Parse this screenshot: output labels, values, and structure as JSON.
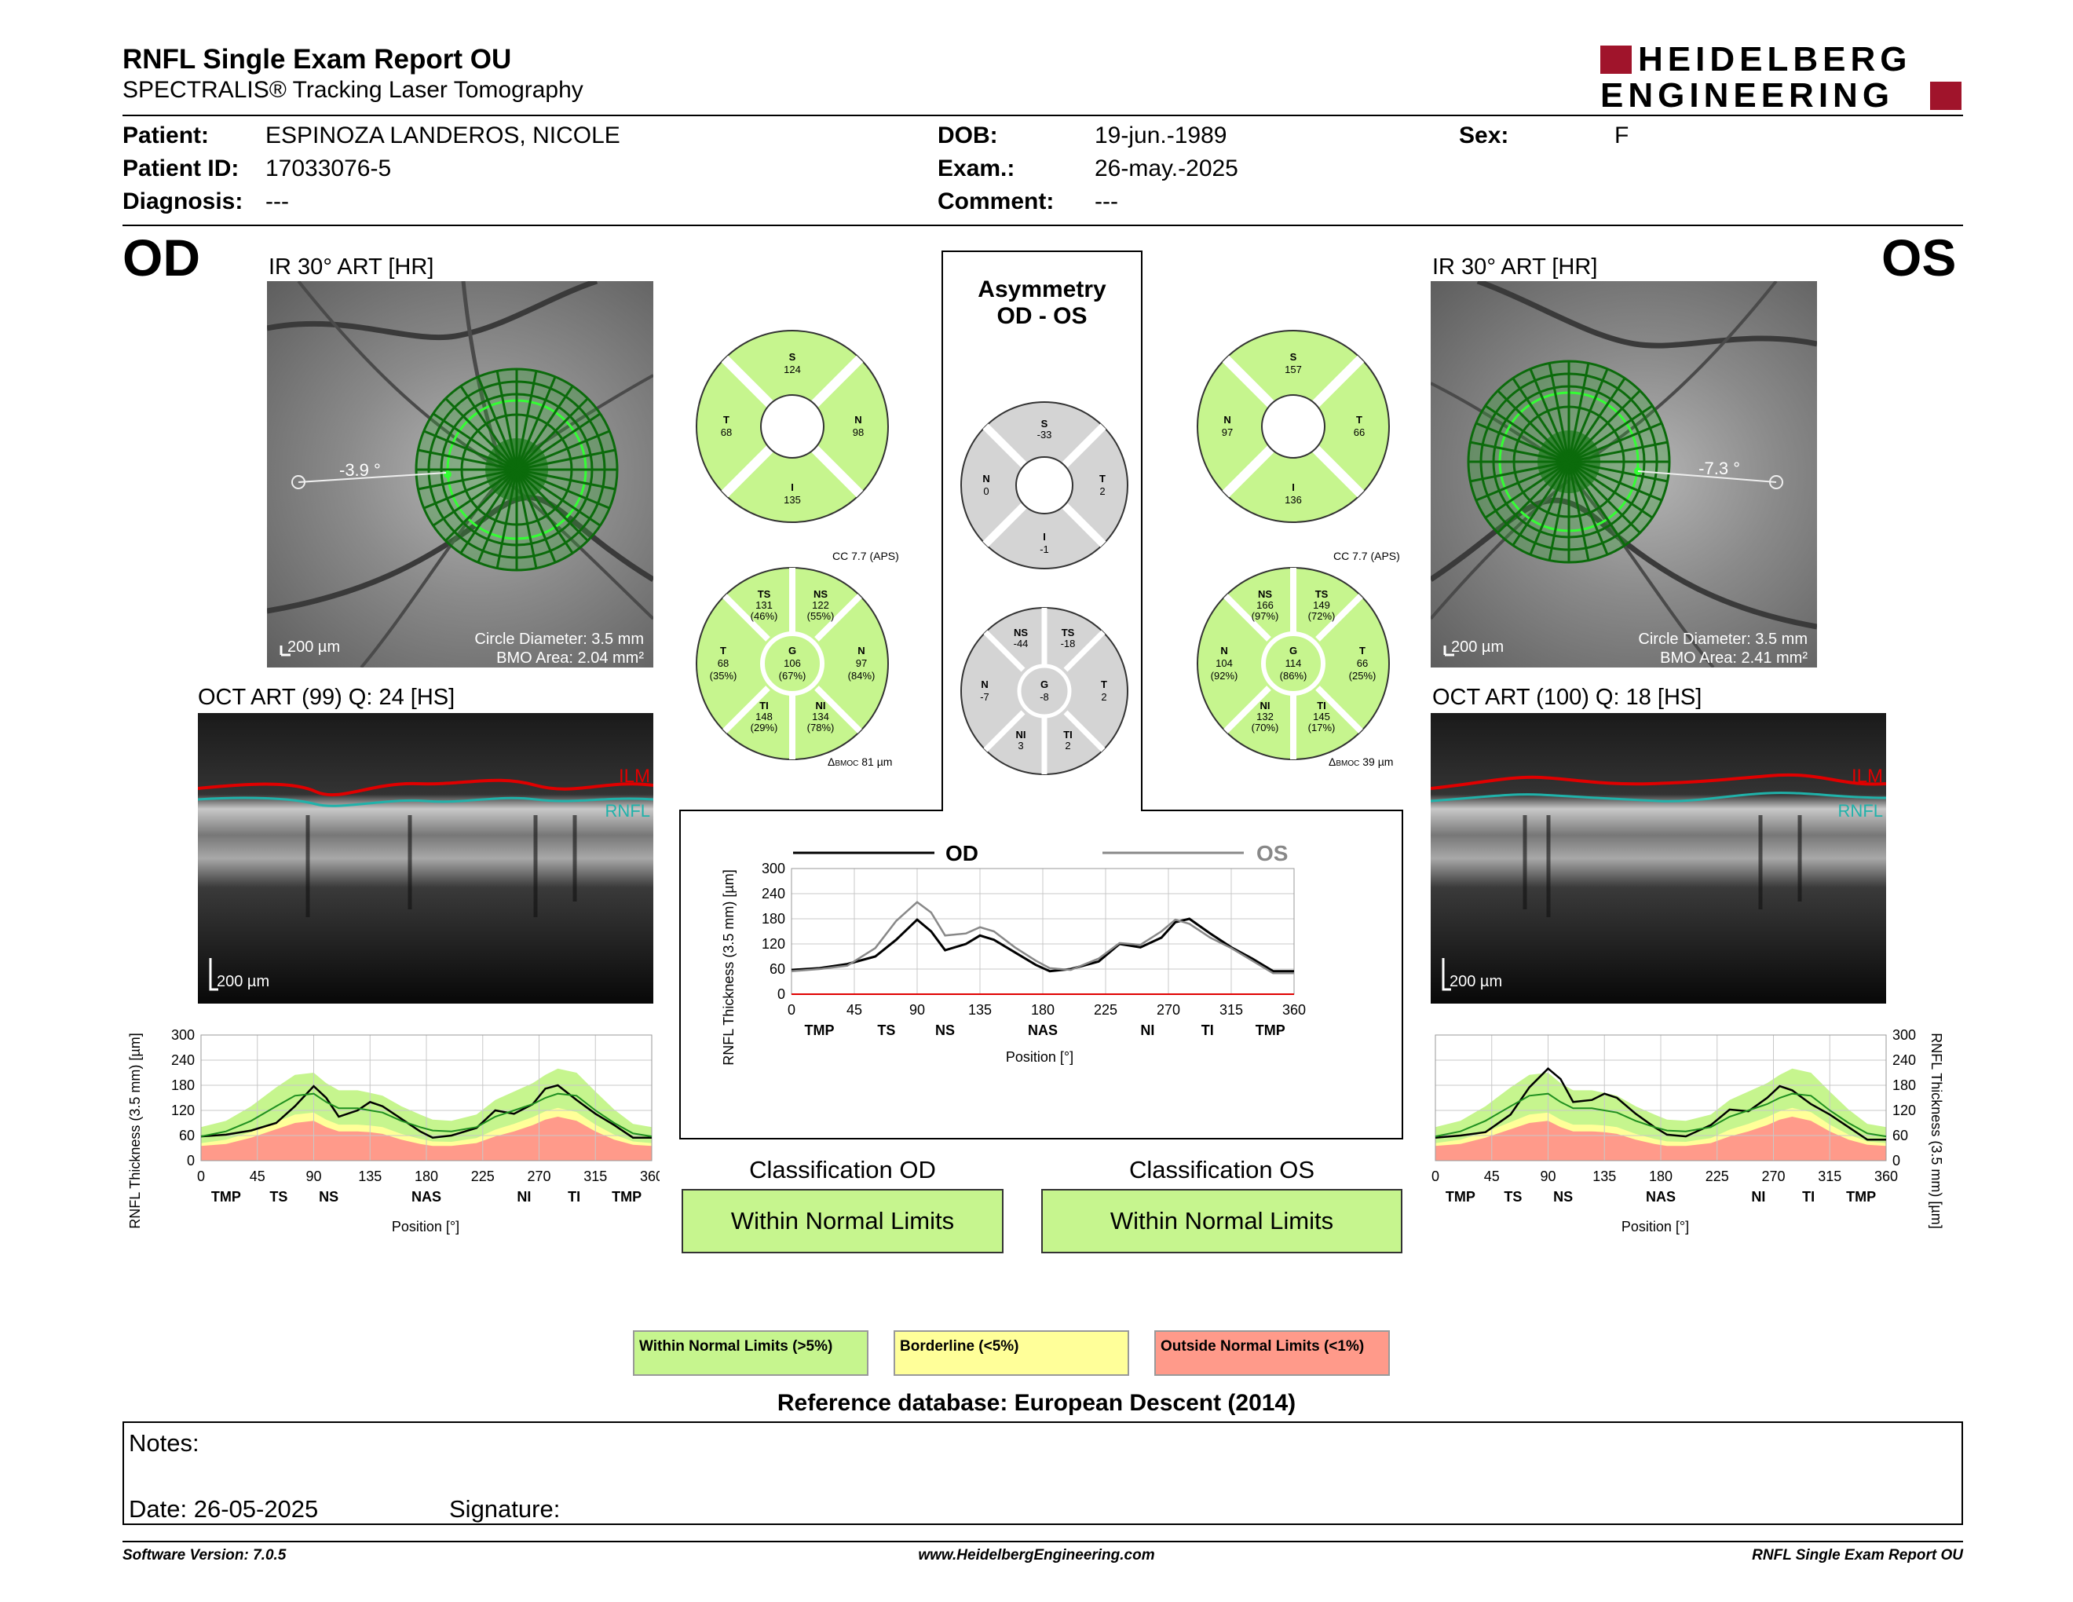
{
  "header": {
    "title": "RNFL Single Exam Report OU",
    "subtitle": "SPECTRALIS® Tracking Laser Tomography",
    "logo_line1": "HEIDELBERG",
    "logo_line2": "ENGINEERING"
  },
  "patient": {
    "patient_label": "Patient:",
    "patient_value": "ESPINOZA LANDEROS, NICOLE",
    "id_label": "Patient ID:",
    "id_value": "17033076-5",
    "diagnosis_label": "Diagnosis:",
    "diagnosis_value": "---",
    "dob_label": "DOB:",
    "dob_value": "19-jun.-1989",
    "exam_label": "Exam.:",
    "exam_value": "26-may.-2025",
    "comment_label": "Comment:",
    "comment_value": "---",
    "sex_label": "Sex:",
    "sex_value": "F"
  },
  "od": {
    "eye": "OD",
    "ir_title": "IR 30° ART [HR]",
    "angle": "-3.9 °",
    "scale": "200 µm",
    "circle_diameter": "Circle Diameter: 3.5 mm",
    "bmo_area": "BMO Area: 2.04 mm²",
    "oct_title": "OCT ART (99) Q: 24 [HS]",
    "oct_scale": "200 µm",
    "ilm": "ILM",
    "rnfl": "RNFL",
    "quad": {
      "S": "124",
      "T": "68",
      "N": "98",
      "I": "135"
    },
    "sect": {
      "TS": "131",
      "TS_p": "(46%)",
      "NS": "122",
      "NS_p": "(55%)",
      "T": "68",
      "T_p": "(35%)",
      "G": "106",
      "G_p": "(67%)",
      "N": "97",
      "N_p": "(84%)",
      "TI": "148",
      "TI_p": "(29%)",
      "NI": "134",
      "NI_p": "(78%)"
    },
    "cc": "CC 7.7 (APS)",
    "bmoc_prefix": "Δ",
    "bmoc_sub": "BMOC",
    "bmoc": "81 µm",
    "classification_title": "Classification OD",
    "classification": "Within Normal Limits"
  },
  "os": {
    "eye": "OS",
    "ir_title": "IR 30° ART [HR]",
    "angle": "-7.3 °",
    "scale": "200 µm",
    "circle_diameter": "Circle Diameter: 3.5 mm",
    "bmo_area": "BMO Area: 2.41 mm²",
    "oct_title": "OCT ART (100) Q: 18 [HS]",
    "oct_scale": "200 µm",
    "ilm": "ILM",
    "rnfl": "RNFL",
    "quad": {
      "S": "157",
      "N": "97",
      "T": "66",
      "I": "136"
    },
    "sect": {
      "NS": "166",
      "NS_p": "(97%)",
      "TS": "149",
      "TS_p": "(72%)",
      "N": "104",
      "N_p": "(92%)",
      "G": "114",
      "G_p": "(86%)",
      "T": "66",
      "T_p": "(25%)",
      "NI": "132",
      "NI_p": "(70%)",
      "TI": "145",
      "TI_p": "(17%)"
    },
    "cc": "CC 7.7 (APS)",
    "bmoc_prefix": "Δ",
    "bmoc_sub": "BMOC",
    "bmoc": "39 µm",
    "classification_title": "Classification OS",
    "classification": "Within Normal Limits"
  },
  "asym": {
    "title1": "Asymmetry",
    "title2": "OD - OS",
    "quad": {
      "S": "-33",
      "N": "0",
      "T": "2",
      "I": "-1"
    },
    "sect": {
      "NS": "-44",
      "TS": "-18",
      "N": "-7",
      "G": "-8",
      "T": "2",
      "NI": "3",
      "TI": "2"
    }
  },
  "legend": {
    "wnl": "Within Normal Limits (>5%)",
    "bl": "Borderline (<5%)",
    "onl": "Outside Normal Limits (<1%)"
  },
  "reference_db": "Reference database: European Descent (2014)",
  "notes": {
    "label": "Notes:",
    "date": "Date: 26-05-2025",
    "signature": "Signature:"
  },
  "footer": {
    "version": "Software Version: 7.0.5",
    "website": "www.HeidelbergEngineering.com",
    "report": "RNFL Single Exam Report OU"
  },
  "colors": {
    "wnl": "#c6f58e",
    "borderline": "#ffff99",
    "outside": "#ff9a8a",
    "grey": "#d4d4d4",
    "brand": "#a0142b",
    "od_line": "#000000",
    "os_line": "#888888"
  },
  "chart_data": [
    {
      "type": "line",
      "id": "comparison",
      "legend": [
        "OD",
        "OS"
      ],
      "ylabel": "RNFL Thickness (3.5 mm) [µm]",
      "xlabel": "Position [°]",
      "ylim": [
        0,
        300
      ],
      "xlim": [
        0,
        360
      ],
      "yticks": [
        0,
        60,
        120,
        180,
        240,
        300
      ],
      "ytick_labels": [
        "0",
        "60",
        "120",
        "180",
        "240",
        "300"
      ],
      "xticks": [
        0,
        45,
        90,
        135,
        180,
        225,
        270,
        315,
        360
      ],
      "xtick_labels": [
        "0",
        "45",
        "90",
        "135",
        "180",
        "225",
        "270",
        "315",
        "360"
      ],
      "region_labels": [
        "TMP",
        "TS",
        "NS",
        "NAS",
        "NI",
        "TI",
        "TMP"
      ],
      "region_positions": [
        20,
        68,
        110,
        180,
        255,
        298,
        343
      ],
      "x": [
        0,
        20,
        40,
        60,
        75,
        90,
        100,
        110,
        125,
        135,
        145,
        160,
        175,
        185,
        200,
        220,
        235,
        250,
        265,
        275,
        285,
        300,
        315,
        330,
        345,
        360
      ],
      "series": [
        {
          "name": "OD",
          "values": [
            58,
            62,
            72,
            90,
            130,
            178,
            150,
            105,
            120,
            140,
            130,
            100,
            70,
            55,
            60,
            78,
            120,
            112,
            135,
            172,
            180,
            145,
            112,
            85,
            55,
            55
          ]
        },
        {
          "name": "OS",
          "values": [
            55,
            60,
            68,
            110,
            175,
            220,
            195,
            140,
            145,
            160,
            150,
            112,
            80,
            62,
            58,
            85,
            122,
            118,
            150,
            178,
            168,
            135,
            110,
            80,
            50,
            50
          ]
        }
      ]
    },
    {
      "type": "area",
      "id": "od_tsnit",
      "ylabel": "RNFL Thickness (3.5 mm) [µm]",
      "xlabel": "Position [°]",
      "ylim": [
        0,
        300
      ],
      "xlim": [
        0,
        360
      ],
      "yticks": [
        0,
        60,
        120,
        180,
        240,
        300
      ],
      "ytick_labels": [
        "0",
        "60",
        "120",
        "180",
        "240",
        "300"
      ],
      "xticks": [
        0,
        45,
        90,
        135,
        180,
        225,
        270,
        315,
        360
      ],
      "xtick_labels": [
        "0",
        "45",
        "90",
        "135",
        "180",
        "225",
        "270",
        "315",
        "360"
      ],
      "region_labels": [
        "TMP",
        "TS",
        "NS",
        "NAS",
        "NI",
        "TI",
        "TMP"
      ],
      "region_positions": [
        20,
        62,
        102,
        180,
        258,
        298,
        340
      ],
      "x": [
        0,
        20,
        40,
        60,
        75,
        90,
        100,
        110,
        125,
        135,
        145,
        160,
        175,
        185,
        200,
        220,
        235,
        250,
        265,
        275,
        285,
        300,
        315,
        330,
        345,
        360
      ],
      "series": [
        {
          "name": "patient",
          "values": [
            58,
            62,
            72,
            90,
            130,
            178,
            150,
            105,
            120,
            140,
            130,
            100,
            70,
            55,
            60,
            78,
            120,
            112,
            135,
            172,
            180,
            145,
            112,
            85,
            55,
            55
          ]
        },
        {
          "name": "normal_mean",
          "values": [
            58,
            70,
            95,
            130,
            155,
            160,
            140,
            125,
            125,
            120,
            115,
            95,
            80,
            72,
            70,
            80,
            105,
            120,
            135,
            150,
            160,
            155,
            120,
            90,
            65,
            58
          ]
        }
      ],
      "bands": {
        "outside_upper": [
          35,
          40,
          55,
          75,
          90,
          95,
          80,
          70,
          70,
          68,
          64,
          50,
          40,
          35,
          35,
          42,
          58,
          70,
          85,
          98,
          105,
          95,
          70,
          50,
          38,
          35
        ],
        "borderline_upper": [
          42,
          50,
          68,
          92,
          110,
          115,
          98,
          86,
          86,
          84,
          80,
          64,
          52,
          46,
          45,
          54,
          74,
          88,
          104,
          118,
          126,
          116,
          86,
          62,
          46,
          42
        ],
        "normal_upper": [
          80,
          95,
          130,
          175,
          205,
          210,
          185,
          168,
          168,
          162,
          155,
          130,
          110,
          98,
          95,
          110,
          145,
          165,
          185,
          205,
          220,
          210,
          165,
          122,
          88,
          80
        ]
      }
    },
    {
      "type": "area",
      "id": "os_tsnit",
      "ylabel": "RNFL Thickness (3.5 mm) [µm]",
      "xlabel": "Position [°]",
      "ylim": [
        0,
        300
      ],
      "xlim": [
        0,
        360
      ],
      "yticks": [
        0,
        60,
        120,
        180,
        240,
        300
      ],
      "ytick_labels": [
        "0",
        "60",
        "120",
        "180",
        "240",
        "300"
      ],
      "xticks": [
        0,
        45,
        90,
        135,
        180,
        225,
        270,
        315,
        360
      ],
      "xtick_labels": [
        "0",
        "45",
        "90",
        "135",
        "180",
        "225",
        "270",
        "315",
        "360"
      ],
      "region_labels": [
        "TMP",
        "TS",
        "NS",
        "NAS",
        "NI",
        "TI",
        "TMP"
      ],
      "region_positions": [
        20,
        62,
        102,
        180,
        258,
        298,
        340
      ],
      "x": [
        0,
        20,
        40,
        60,
        75,
        90,
        100,
        110,
        125,
        135,
        145,
        160,
        175,
        185,
        200,
        220,
        235,
        250,
        265,
        275,
        285,
        300,
        315,
        330,
        345,
        360
      ],
      "series": [
        {
          "name": "patient",
          "values": [
            55,
            60,
            68,
            110,
            175,
            220,
            195,
            140,
            145,
            160,
            150,
            112,
            80,
            62,
            58,
            85,
            122,
            118,
            150,
            178,
            168,
            135,
            110,
            80,
            50,
            50
          ]
        },
        {
          "name": "normal_mean",
          "values": [
            58,
            70,
            95,
            130,
            155,
            160,
            140,
            125,
            125,
            120,
            115,
            95,
            80,
            72,
            70,
            80,
            105,
            120,
            135,
            150,
            160,
            155,
            120,
            90,
            65,
            58
          ]
        }
      ],
      "bands": {
        "outside_upper": [
          35,
          40,
          55,
          75,
          90,
          95,
          80,
          70,
          70,
          68,
          64,
          50,
          40,
          35,
          35,
          42,
          58,
          70,
          85,
          98,
          105,
          95,
          70,
          50,
          38,
          35
        ],
        "borderline_upper": [
          42,
          50,
          68,
          92,
          110,
          115,
          98,
          86,
          86,
          84,
          80,
          64,
          52,
          46,
          45,
          54,
          74,
          88,
          104,
          118,
          126,
          116,
          86,
          62,
          46,
          42
        ],
        "normal_upper": [
          80,
          95,
          130,
          175,
          205,
          210,
          185,
          168,
          168,
          162,
          155,
          130,
          110,
          98,
          95,
          110,
          145,
          165,
          185,
          205,
          220,
          210,
          165,
          122,
          88,
          80
        ]
      }
    }
  ]
}
